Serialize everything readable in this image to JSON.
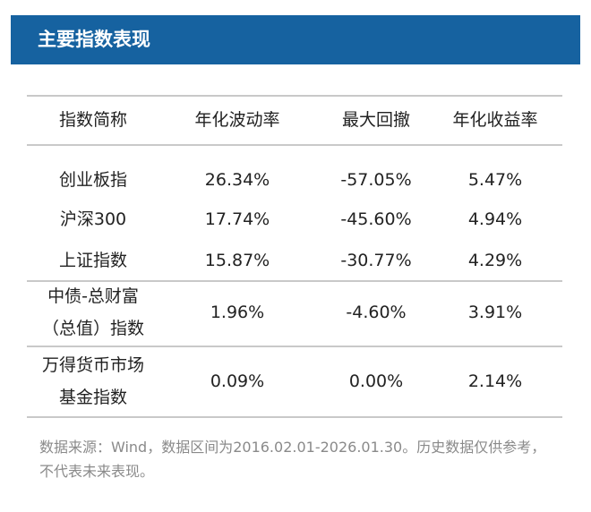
{
  "header": {
    "title": "主要指数表现"
  },
  "table": {
    "columns": [
      "指数简称",
      "年化波动率",
      "最大回撤",
      "年化收益率"
    ],
    "rows": [
      [
        "创业板指",
        "26.34%",
        "-57.05%",
        "5.47%"
      ],
      [
        "沪深300",
        "17.74%",
        "-45.60%",
        "4.94%"
      ],
      [
        "上证指数",
        "15.87%",
        "-30.77%",
        "4.29%"
      ],
      [
        [
          "中债-总财富",
          "（总值）指数"
        ],
        "1.96%",
        "-4.60%",
        "3.91%"
      ],
      [
        [
          "万得货币市场",
          "基金指数"
        ],
        "0.09%",
        "0.00%",
        "2.14%"
      ]
    ]
  },
  "footnote": "数据来源：Wind，数据区间为2016.02.01-2026.01.30。历史数据仅供参考，不代表未来表现。"
}
